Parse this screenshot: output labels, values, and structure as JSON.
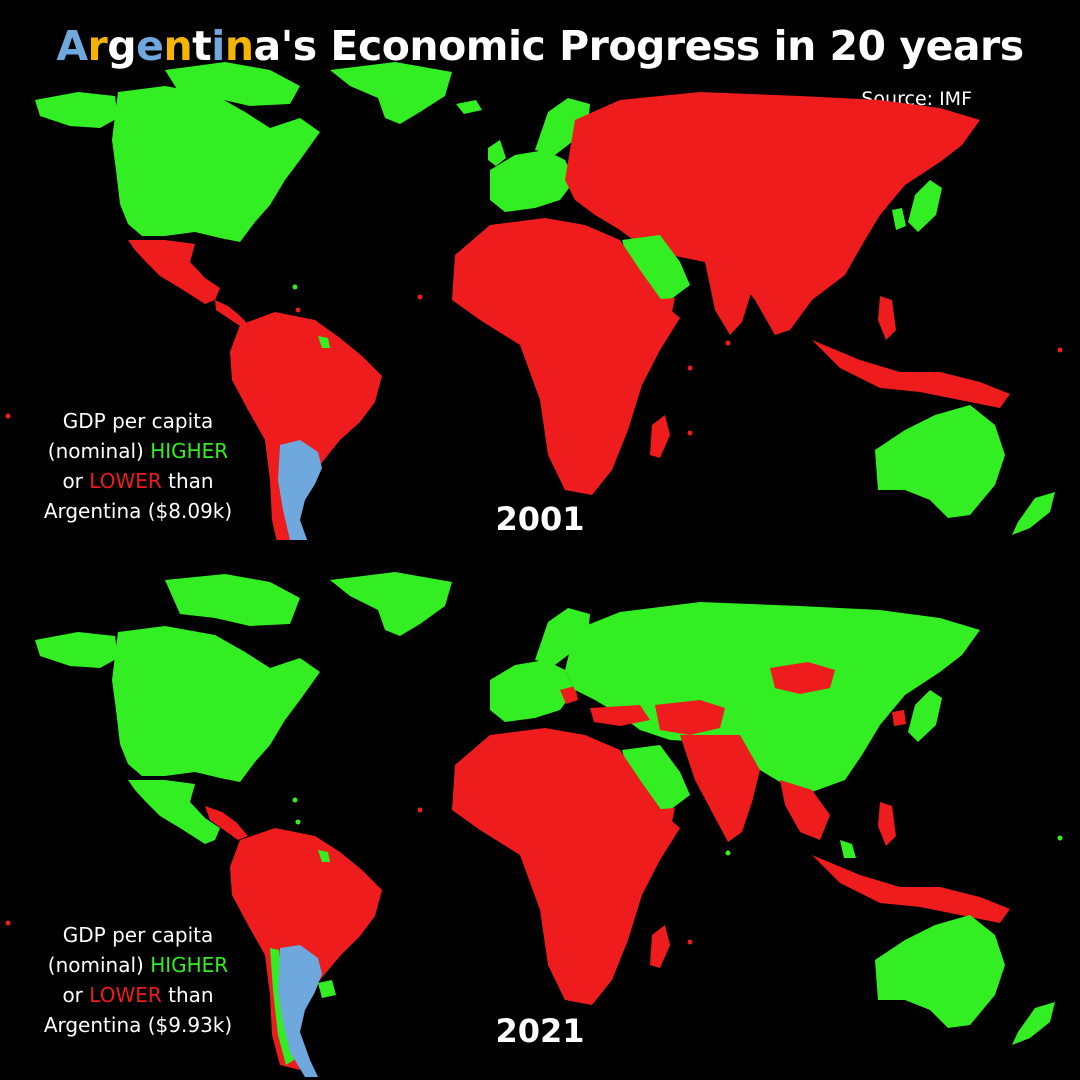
{
  "title": {
    "text": "Argentina's Economic Progress in 20 years",
    "letter_colors": [
      "#6fa8dc",
      "#f4b400",
      "#ffffff",
      "#6fa8dc",
      "#f4b400",
      "#ffffff",
      "#6fa8dc",
      "#f4b400",
      "#ffffff"
    ]
  },
  "source": "Source: IMF",
  "colors": {
    "higher": "#33ee22",
    "lower": "#ee1c1c",
    "argentina": "#6fa8dc",
    "background": "#000000"
  },
  "maps": [
    {
      "year": "2001",
      "legend": {
        "line1": "GDP per capita",
        "line2_prefix": "(nominal) ",
        "higher_word": "HIGHER",
        "line3_prefix": "or ",
        "lower_word": "LOWER",
        "line3_suffix": " than",
        "line4": "Argentina ($8.09k)"
      }
    },
    {
      "year": "2021",
      "legend": {
        "line1": "GDP per capita",
        "line2_prefix": "(nominal) ",
        "higher_word": "HIGHER",
        "line3_prefix": "or ",
        "lower_word": "LOWER",
        "line3_suffix": " than",
        "line4": "Argentina ($9.93k)"
      }
    }
  ]
}
